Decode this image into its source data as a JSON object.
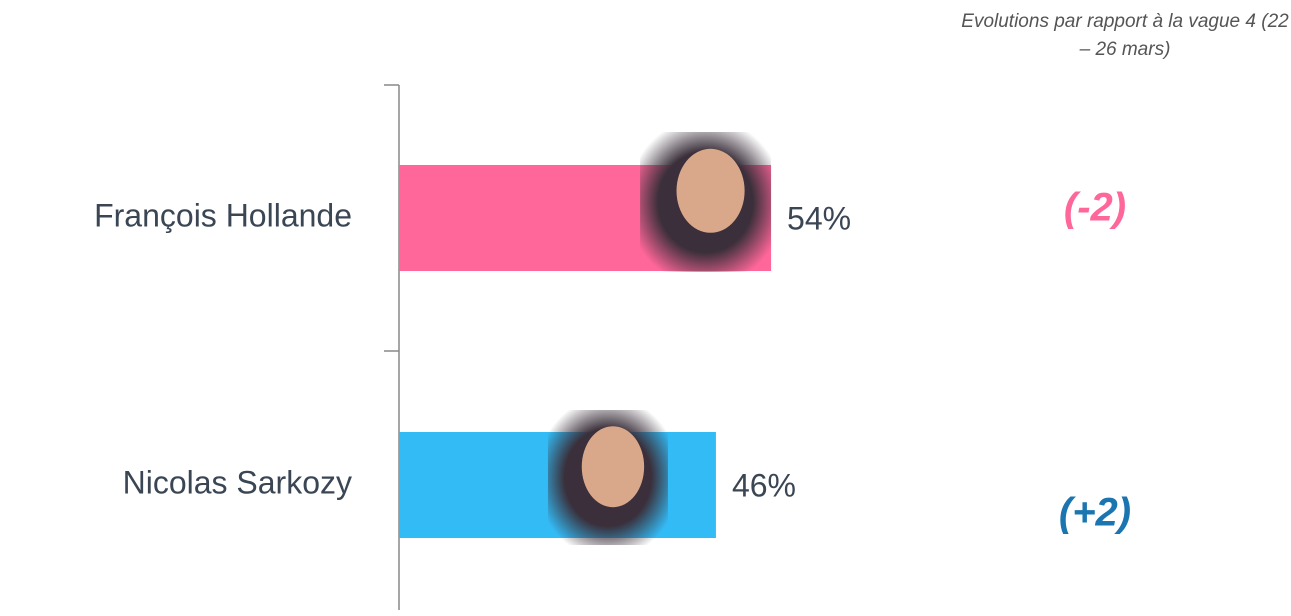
{
  "chart_data": {
    "type": "bar",
    "orientation": "horizontal",
    "note": "Evolutions par rapport à la vague 4 (22 – 26 mars)",
    "categories": [
      "François Hollande",
      "Nicolas Sarkozy"
    ],
    "values": [
      54,
      46
    ],
    "value_labels": [
      "54%",
      "46%"
    ],
    "colors": [
      "#ff6699",
      "#33bbf5"
    ],
    "changes": [
      "(-2)",
      "(+2)"
    ],
    "change_colors": [
      "#ff6699",
      "#1b75b0"
    ]
  }
}
